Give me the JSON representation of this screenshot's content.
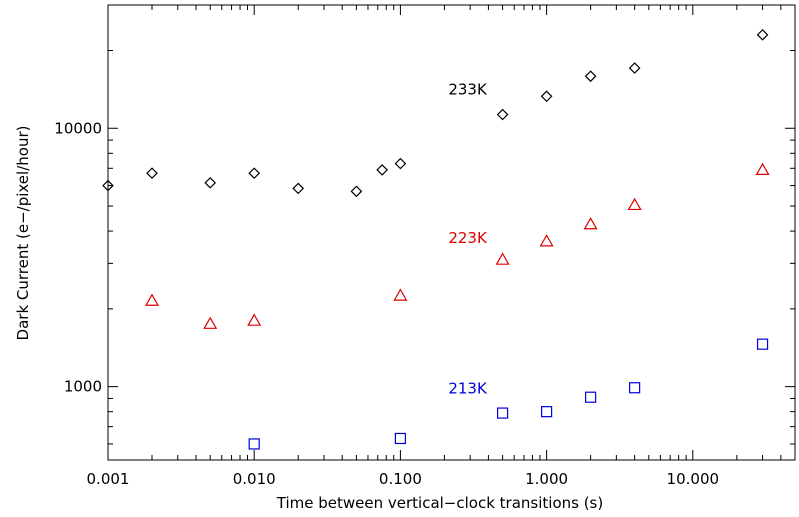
{
  "chart_data": {
    "type": "scatter",
    "title": "",
    "xlabel": "Time between vertical−clock transitions (s)",
    "ylabel": "Dark Current (e−/pixel/hour)",
    "xscale": "log",
    "yscale": "log",
    "xlim": [
      0.001,
      50
    ],
    "ylim": [
      520,
      30000
    ],
    "grid": false,
    "x_ticks": [
      {
        "value": 0.001,
        "label": "0.001"
      },
      {
        "value": 0.01,
        "label": "0.010"
      },
      {
        "value": 0.1,
        "label": "0.100"
      },
      {
        "value": 1,
        "label": "1.000"
      },
      {
        "value": 10,
        "label": "10.000"
      }
    ],
    "y_ticks": [
      {
        "value": 1000,
        "label": "1000"
      },
      {
        "value": 10000,
        "label": "10000"
      }
    ],
    "series": [
      {
        "name": "233K",
        "color": "#000000",
        "marker": "diamond",
        "label_at": {
          "x": 0.39,
          "y": 13500
        },
        "points": [
          {
            "x": 0.001,
            "y": 6000
          },
          {
            "x": 0.002,
            "y": 6700
          },
          {
            "x": 0.005,
            "y": 6150
          },
          {
            "x": 0.01,
            "y": 6700
          },
          {
            "x": 0.02,
            "y": 5850
          },
          {
            "x": 0.05,
            "y": 5700
          },
          {
            "x": 0.075,
            "y": 6900
          },
          {
            "x": 0.1,
            "y": 7300
          },
          {
            "x": 0.5,
            "y": 11300
          },
          {
            "x": 1,
            "y": 13300
          },
          {
            "x": 2,
            "y": 15900
          },
          {
            "x": 4,
            "y": 17100
          },
          {
            "x": 30,
            "y": 23000
          }
        ]
      },
      {
        "name": "223K",
        "color": "#dd0000",
        "marker": "triangle",
        "label_at": {
          "x": 0.39,
          "y": 3600
        },
        "points": [
          {
            "x": 0.002,
            "y": 2150
          },
          {
            "x": 0.005,
            "y": 1750
          },
          {
            "x": 0.01,
            "y": 1800
          },
          {
            "x": 0.1,
            "y": 2250
          },
          {
            "x": 0.5,
            "y": 3100
          },
          {
            "x": 1,
            "y": 3650
          },
          {
            "x": 2,
            "y": 4250
          },
          {
            "x": 4,
            "y": 5050
          },
          {
            "x": 30,
            "y": 6900
          }
        ]
      },
      {
        "name": "213K",
        "color": "#0000dd",
        "marker": "square",
        "label_at": {
          "x": 0.39,
          "y": 940
        },
        "points": [
          {
            "x": 0.01,
            "y": 600
          },
          {
            "x": 0.1,
            "y": 630
          },
          {
            "x": 0.5,
            "y": 790
          },
          {
            "x": 1,
            "y": 800
          },
          {
            "x": 2,
            "y": 910
          },
          {
            "x": 4,
            "y": 990
          },
          {
            "x": 30,
            "y": 1460
          }
        ]
      }
    ]
  }
}
